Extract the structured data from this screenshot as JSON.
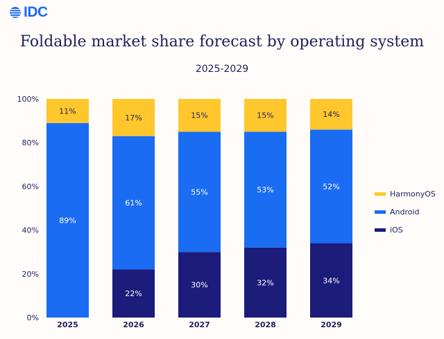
{
  "logo": {
    "text": "IDC"
  },
  "chart_data": {
    "type": "bar",
    "stacked": true,
    "title": "Foldable market share forecast by operating system",
    "subtitle": "2025-2029",
    "categories": [
      "2025",
      "2026",
      "2027",
      "2028",
      "2029"
    ],
    "series": [
      {
        "name": "iOS",
        "color": "#1c1c7a",
        "values": [
          0,
          22,
          30,
          32,
          34
        ],
        "labels": [
          "",
          "22%",
          "30%",
          "32%",
          "34%"
        ]
      },
      {
        "name": "Android",
        "color": "#1a6cf2",
        "values": [
          89,
          61,
          55,
          53,
          52
        ],
        "labels": [
          "89%",
          "61%",
          "55%",
          "53%",
          "52%"
        ]
      },
      {
        "name": "HarmonyOS",
        "color": "#ffc72c",
        "values": [
          11,
          17,
          15,
          15,
          14
        ],
        "labels": [
          "11%",
          "17%",
          "15%",
          "15%",
          "14%"
        ]
      }
    ],
    "ylim": [
      0,
      100
    ],
    "yticks": [
      "0%",
      "20%",
      "40%",
      "60%",
      "80%",
      "100%"
    ],
    "legend": [
      "HarmonyOS",
      "Android",
      "iOS"
    ],
    "legend_position": "right",
    "grid": false
  }
}
